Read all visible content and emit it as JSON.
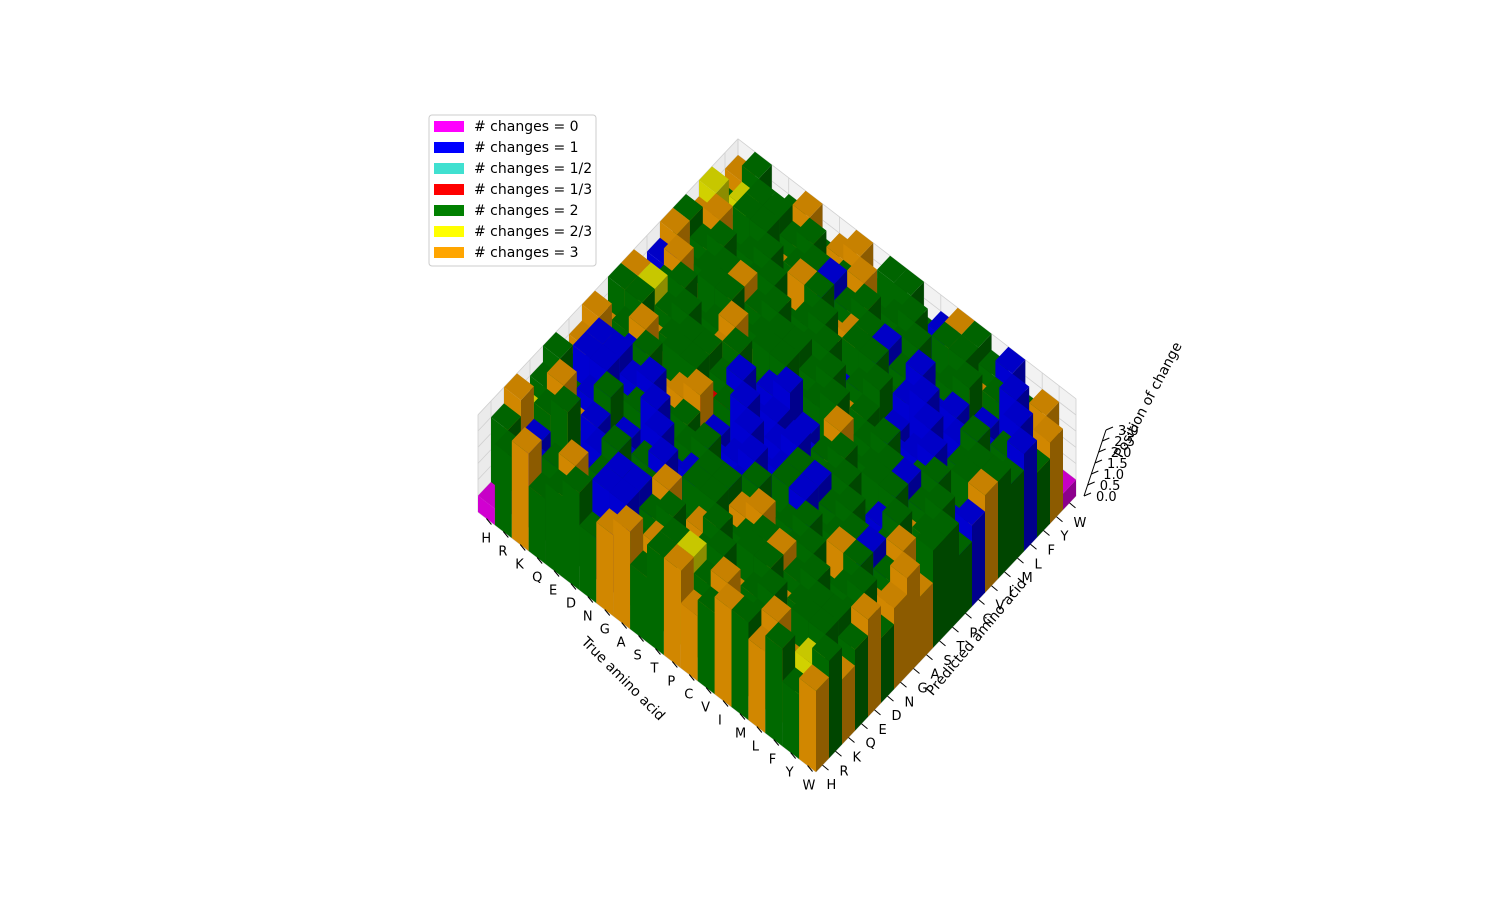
{
  "chart_data": {
    "type": "bar3d",
    "xlabel": "True amino acid",
    "ylabel": "Predicted amino acid",
    "zlabel": "Position of change",
    "x_categories": [
      "H",
      "R",
      "K",
      "Q",
      "E",
      "D",
      "N",
      "G",
      "A",
      "S",
      "T",
      "P",
      "C",
      "V",
      "I",
      "M",
      "L",
      "F",
      "Y",
      "W"
    ],
    "y_categories": [
      "H",
      "R",
      "K",
      "Q",
      "E",
      "D",
      "N",
      "G",
      "A",
      "S",
      "T",
      "P",
      "C",
      "V",
      "I",
      "M",
      "L",
      "F",
      "Y",
      "W"
    ],
    "z_ticks": [
      "0.0",
      "0.5",
      "1.0",
      "1.5",
      "2.0",
      "2.5",
      "3.0"
    ],
    "zlim": [
      0,
      3
    ],
    "grid": true,
    "legend_position": "upper-left",
    "legend": [
      {
        "label": "# changes = 0",
        "color": "#ff00ff"
      },
      {
        "label": "# changes = 1",
        "color": "#0000ff"
      },
      {
        "label": "# changes = 1/2",
        "color": "#40e0d0"
      },
      {
        "label": "# changes = 1/3",
        "color": "#ff0000"
      },
      {
        "label": "# changes = 2",
        "color": "#008000"
      },
      {
        "label": "# changes = 2/3",
        "color": "#ffff00"
      },
      {
        "label": "# changes = 3",
        "color": "#ffa500"
      }
    ],
    "category_colors": {
      "0": "#ff00ff",
      "1": "#0000ff",
      "1/2": "#40e0d0",
      "1/3": "#ff0000",
      "2": "#008000",
      "2/3": "#ffff00",
      "3": "#ffa500"
    },
    "matrix": [
      [
        "0",
        "2",
        "3",
        "2/3",
        "2",
        "2",
        "2",
        "3",
        "3",
        "3",
        "2",
        "3",
        "3",
        "1",
        "3",
        "2",
        "3",
        "2/3",
        "2",
        "3"
      ],
      [
        "2",
        "0",
        "1",
        "2",
        "3",
        "2",
        "1",
        "1",
        "1",
        "2",
        "2",
        "2/3",
        "2",
        "3",
        "2",
        "2",
        "3",
        "3",
        "2/3",
        "2"
      ],
      [
        "3",
        "1",
        "0",
        "2",
        "3",
        "1",
        "1",
        "1",
        "1",
        "3",
        "3",
        "2",
        "2",
        "3",
        "2",
        "2",
        "2",
        "2",
        "2",
        "3"
      ],
      [
        "2",
        "2",
        "0",
        "0",
        "1",
        "2",
        "2",
        "1",
        "2",
        "3",
        "2",
        "2",
        "2",
        "2",
        "2",
        "3",
        "2",
        "2",
        "2",
        "2"
      ],
      [
        "2",
        "3",
        "1",
        "1",
        "0",
        "1",
        "2",
        "1",
        "3",
        "2",
        "2",
        "2",
        "2",
        "2",
        "3",
        "2",
        "2",
        "3",
        "2",
        "3"
      ],
      [
        "2",
        "2",
        "2",
        "2",
        "1",
        "0",
        "1",
        "2",
        "3",
        "2",
        "2",
        "3",
        "3",
        "2",
        "2",
        "2",
        "2",
        "2",
        "2",
        "2"
      ],
      [
        "2",
        "1",
        "1",
        "2",
        "2",
        "1",
        "0",
        "2",
        "3",
        "1/3",
        "2",
        "2",
        "3",
        "2",
        "2",
        "2",
        "3",
        "2",
        "3",
        "3"
      ],
      [
        "3",
        "1",
        "1",
        "2",
        "1",
        "1",
        "2",
        "0",
        "1",
        "2",
        "1",
        "2",
        "2",
        "2",
        "2",
        "2",
        "2",
        "1",
        "2",
        "3"
      ],
      [
        "3",
        "2",
        "2",
        "3",
        "1",
        "1",
        "2",
        "1",
        "0",
        "1",
        "1",
        "1",
        "2",
        "2",
        "2",
        "2",
        "3",
        "2",
        "3",
        "3"
      ],
      [
        "2",
        "3",
        "2",
        "2",
        "2",
        "2",
        "1/3",
        "1",
        "1",
        "0",
        "1",
        "1",
        "2",
        "2",
        "2",
        "2",
        "3",
        "2",
        "2",
        "2"
      ],
      [
        "2",
        "2",
        "2",
        "3",
        "2",
        "2",
        "1",
        "1",
        "1",
        "1",
        "0",
        "1",
        "2",
        "2",
        "1",
        "2",
        "2",
        "3",
        "2",
        "2"
      ],
      [
        "3",
        "2/3",
        "2",
        "2",
        "2",
        "3",
        "2",
        "1",
        "1",
        "1",
        "1",
        "0",
        "2",
        "3",
        "2",
        "2",
        "1",
        "2",
        "2",
        "2"
      ],
      [
        "3",
        "2",
        "2",
        "2",
        "2",
        "3",
        "2",
        "2",
        "2",
        "1",
        "2",
        "3",
        "0",
        "2",
        "2",
        "2",
        "2",
        "2",
        "1",
        "1"
      ],
      [
        "2",
        "3",
        "3",
        "2",
        "2",
        "2",
        "2",
        "1",
        "1",
        "2",
        "2",
        "2",
        "2",
        "0",
        "1",
        "1",
        "1",
        "2",
        "2",
        "3"
      ],
      [
        "3",
        "2",
        "2",
        "2",
        "3",
        "2",
        "2",
        "2",
        "2",
        "2",
        "1",
        "2",
        "2",
        "1",
        "0",
        "1",
        "1",
        "2",
        "2",
        "2"
      ],
      [
        "2",
        "2",
        "2",
        "3",
        "2",
        "2",
        "2",
        "2",
        "2",
        "2",
        "2",
        "2",
        "3",
        "1",
        "1",
        "0",
        "1",
        "2",
        "3",
        "2"
      ],
      [
        "3",
        "3",
        "2",
        "2",
        "2",
        "2",
        "3",
        "2",
        "3",
        "1",
        "2",
        "1",
        "2",
        "1",
        "1",
        "1",
        "0",
        "1",
        "2",
        "1"
      ],
      [
        "2",
        "3",
        "2",
        "2",
        "3",
        "2",
        "2",
        "1",
        "2",
        "2",
        "3",
        "2",
        "2",
        "2",
        "2",
        "2",
        "1",
        "0",
        "1",
        "2"
      ],
      [
        "2",
        "2/3",
        "2",
        "2",
        "2",
        "2",
        "3",
        "2",
        "3",
        "2",
        "2",
        "2",
        "1",
        "2",
        "2",
        "3",
        "2",
        "1",
        "0",
        "3"
      ],
      [
        "3",
        "2",
        "3",
        "2",
        "3",
        "2",
        "3",
        "3",
        "3",
        "2",
        "2",
        "2",
        "1",
        "3",
        "2",
        "2",
        "1",
        "2",
        "3",
        "0"
      ]
    ],
    "layers": [
      [
        0,
        0.5
      ],
      [
        0.5,
        1
      ],
      [
        1,
        1.5
      ],
      [
        1.5,
        2
      ],
      [
        2,
        2.5
      ],
      [
        2.5,
        3
      ]
    ]
  }
}
